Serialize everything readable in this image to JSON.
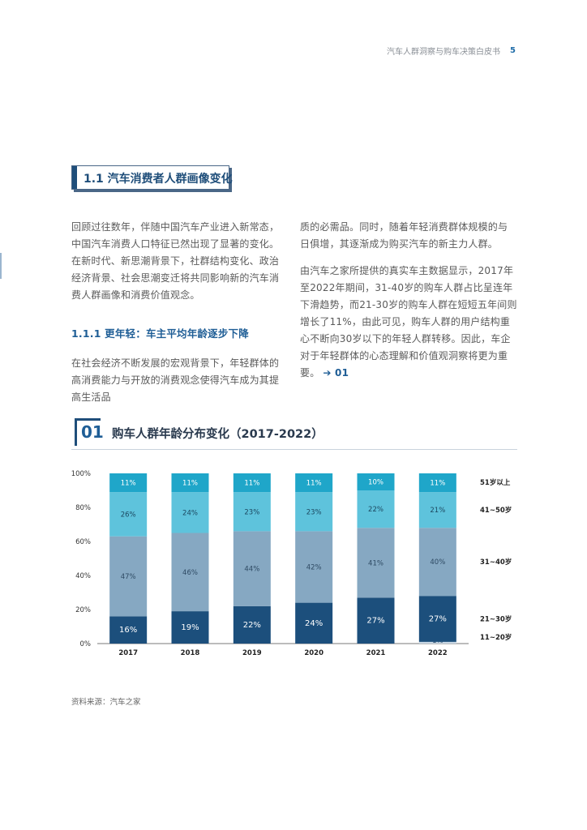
{
  "header": {
    "doc_title": "汽车人群洞察与购车决策白皮书",
    "page_number": "5"
  },
  "section": {
    "title": "1.1 汽车消费者人群画像变化"
  },
  "body": {
    "para1": "回顾过往数年，伴随中国汽车产业进入新常态，中国汽车消费人口特征已然出现了显著的变化。在新时代、新思潮背景下，社群结构变化、政治经济背景、社会思潮变迁将共同影响新的汽车消费人群画像和消费价值观念。",
    "subheading": "1.1.1 更年轻：车主平均年龄逐步下降",
    "para2_left": "在社会经济不断发展的宏观背景下，年轻群体的高消费能力与开放的消费观念使得汽车成为其提高生活品",
    "para2_right": "质的必需品。同时，随着年轻消费群体规模的与日俱增，其逐渐成为购买汽车的新主力人群。",
    "para3": "由汽车之家所提供的真实车主数据显示，2017年至2022年期间，31-40岁的购车人群占比呈连年下滑趋势，而21-30岁的购车人群在短短五年间则增长了11%，由此可见，购车人群的用户结构重心不断向30岁以下的年轻人群转移。因此，车企对于年轻群体的心态理解和价值观洞察将更为重要。",
    "ref_link": "➔ 01"
  },
  "figure": {
    "number": "01",
    "title": "购车人群年龄分布变化（2017-2022）"
  },
  "source": "资料来源：汽车之家",
  "chart_data": {
    "type": "bar",
    "stacked": true,
    "categories": [
      "2017",
      "2018",
      "2019",
      "2020",
      "2021",
      "2022"
    ],
    "yticks": [
      "0%",
      "20%",
      "40%",
      "60%",
      "80%",
      "100%"
    ],
    "ylim": [
      0,
      100
    ],
    "series": [
      {
        "name": "11~20岁",
        "values": [
          0,
          0,
          0,
          0,
          0,
          1
        ],
        "labels": [
          "0%",
          "0%",
          "0%",
          "0%",
          "0%",
          "1%"
        ],
        "color": "#c8d7e4"
      },
      {
        "name": "21~30岁",
        "values": [
          16,
          19,
          22,
          24,
          27,
          27
        ],
        "labels": [
          "16%",
          "19%",
          "22%",
          "24%",
          "27%",
          "27%"
        ],
        "color": "#1c4f7c"
      },
      {
        "name": "31~40岁",
        "values": [
          47,
          46,
          44,
          42,
          41,
          40
        ],
        "labels": [
          "47%",
          "46%",
          "44%",
          "42%",
          "41%",
          "40%"
        ],
        "color": "#86a8c2"
      },
      {
        "name": "41~50岁",
        "values": [
          26,
          24,
          23,
          23,
          22,
          21
        ],
        "labels": [
          "26%",
          "24%",
          "23%",
          "23%",
          "22%",
          "21%"
        ],
        "color": "#5ec3dc"
      },
      {
        "name": "51岁以上",
        "values": [
          11,
          11,
          11,
          11,
          10,
          11
        ],
        "labels": [
          "11%",
          "11%",
          "11%",
          "11%",
          "10%",
          "11%"
        ],
        "color": "#1fa6c9"
      }
    ],
    "legend_position": "right"
  }
}
